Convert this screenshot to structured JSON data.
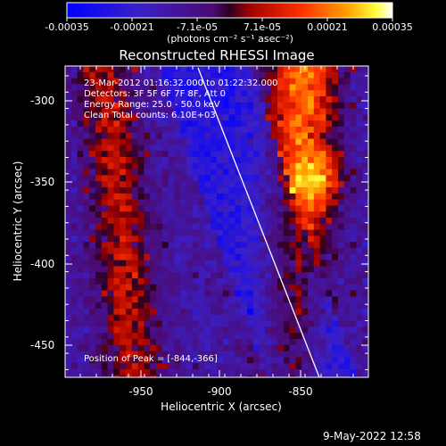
{
  "colorbar": {
    "tick_labels": [
      "-0.00035",
      "-0.00021",
      "-7.1e-05",
      "7.1e-05",
      "0.00021",
      "0.00035"
    ],
    "unit_label": "(photons cm⁻² s⁻¹ asec⁻²)",
    "colors": [
      "#0000ff",
      "#3020c0",
      "#5010a0",
      "#ff0000",
      "#ff8000",
      "#ffff00",
      "#ffffff"
    ]
  },
  "figure": {
    "title": "Reconstructed RHESSI Image",
    "xlabel": "Heliocentric X (arcsec)",
    "ylabel": "Heliocentric Y (arcsec)",
    "x_ticks": [
      "-950",
      "-900",
      "-850"
    ],
    "y_ticks": [
      "-300",
      "-350",
      "-400",
      "-450"
    ],
    "xlim": [
      -997,
      -825
    ],
    "ylim": [
      -472,
      -283
    ]
  },
  "annotations": {
    "time_range": "23-Mar-2012 01:16:32.000 to 01:22:32.000",
    "detectors": "Detectors: 3F 5F 6F 7F 8F, Att 0",
    "energy_range": "Energy Range: 25.0 - 50.0 keV",
    "clean_counts": "Clean     Total counts: 6.10E+03",
    "peak_position": "Position of Peak = [-844,-366]"
  },
  "footer": {
    "date_stamp": "9-May-2022 12:58"
  }
}
